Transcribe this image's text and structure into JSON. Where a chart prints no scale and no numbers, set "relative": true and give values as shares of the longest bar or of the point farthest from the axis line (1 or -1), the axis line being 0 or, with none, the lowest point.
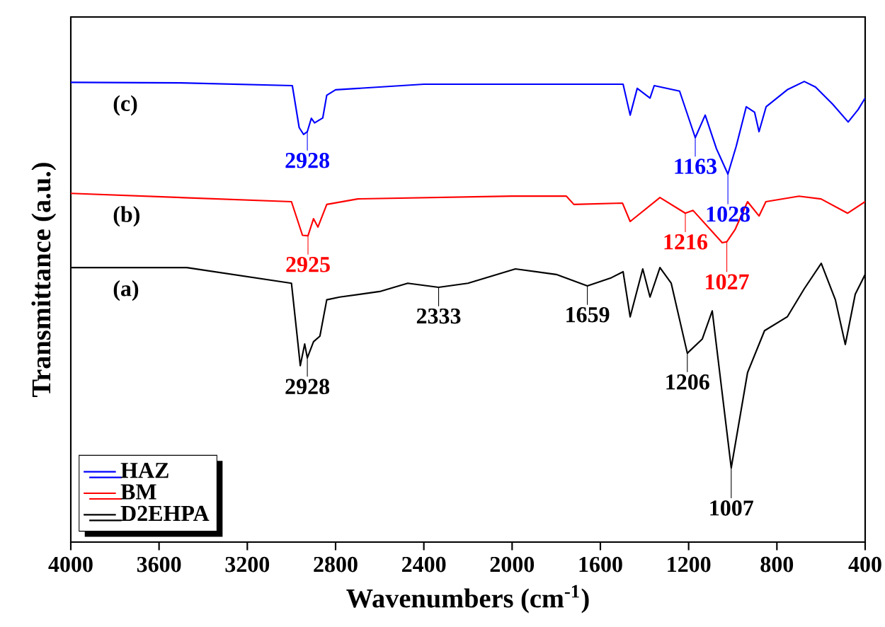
{
  "chart_data": {
    "type": "line",
    "relative": true,
    "xlabel": "Wavenumbers (cm$^{-1}$)",
    "ylabel": "Transmittance (a.u.)",
    "xlim": [
      4000,
      400
    ],
    "xticks": [
      4000,
      3600,
      3200,
      2800,
      2400,
      2000,
      1600,
      1200,
      800,
      400
    ],
    "legend": "bottom left",
    "grid": false,
    "series": [
      {
        "name": "HAZ",
        "color": "#0000ff",
        "x": [
          4000,
          3500,
          2996,
          2965,
          2945,
          2928,
          2910,
          2895,
          2858,
          2840,
          2800,
          2400,
          2000,
          1497,
          1465,
          1433,
          1375,
          1356,
          1241,
          1170,
          1125,
          1074,
          1022,
          984,
          939,
          901,
          881,
          849,
          753,
          676,
          625,
          548,
          477,
          432,
          400
        ],
        "values": [
          0.998,
          0.997,
          0.991,
          0.9,
          0.885,
          0.891,
          0.92,
          0.91,
          0.921,
          0.97,
          0.982,
          0.994,
          0.994,
          0.994,
          0.927,
          0.985,
          0.964,
          0.991,
          0.979,
          0.878,
          0.927,
          0.854,
          0.799,
          0.86,
          0.945,
          0.933,
          0.891,
          0.945,
          0.982,
          1.0,
          0.988,
          0.951,
          0.912,
          0.939,
          0.964
        ]
      },
      {
        "name": "BM",
        "color": "#ff0000",
        "x": [
          4000,
          3000,
          2950,
          2925,
          2900,
          2880,
          2840,
          2700,
          2000,
          1754,
          1720,
          1500,
          1465,
          1330,
          1215,
          1180,
          1048,
          1027,
          990,
          933,
          881,
          850,
          700,
          600,
          480,
          400
        ],
        "values": [
          0.757,
          0.739,
          0.666,
          0.665,
          0.702,
          0.684,
          0.733,
          0.745,
          0.751,
          0.751,
          0.733,
          0.736,
          0.696,
          0.748,
          0.714,
          0.72,
          0.65,
          0.652,
          0.678,
          0.739,
          0.708,
          0.739,
          0.751,
          0.745,
          0.714,
          0.739
        ]
      },
      {
        "name": "D2EHPA",
        "color": "#000000",
        "x": [
          4000,
          3474,
          3000,
          2970,
          2960,
          2940,
          2928,
          2900,
          2871,
          2840,
          2781,
          2600,
          2473,
          2333,
          2200,
          1985,
          1800,
          1659,
          1550,
          1497,
          1465,
          1408,
          1375,
          1330,
          1279,
          1206,
          1138,
          1093,
          1007,
          933,
          856,
          753,
          676,
          599,
          535,
          490,
          445,
          400
        ],
        "values": [
          0.596,
          0.596,
          0.562,
          0.429,
          0.383,
          0.43,
          0.4,
          0.435,
          0.447,
          0.526,
          0.532,
          0.544,
          0.562,
          0.553,
          0.562,
          0.593,
          0.581,
          0.556,
          0.574,
          0.587,
          0.489,
          0.593,
          0.532,
          0.596,
          0.562,
          0.41,
          0.441,
          0.502,
          0.161,
          0.368,
          0.459,
          0.489,
          0.55,
          0.605,
          0.526,
          0.429,
          0.538,
          0.581
        ]
      }
    ],
    "annotations": [
      "(c)",
      "(b)",
      "(a)",
      {
        "text": "2928",
        "x": 2928,
        "y": 0.891
      },
      {
        "text": "1163",
        "x": 1170,
        "y": 0.878
      },
      {
        "text": "1028",
        "x": 1022,
        "y": 0.799
      },
      {
        "text": "2925",
        "x": 2925,
        "y": 0.665
      },
      {
        "text": "1216",
        "x": 1215,
        "y": 0.714
      },
      {
        "text": "1027",
        "x": 1027,
        "y": 0.652
      },
      {
        "text": "2928",
        "x": 2928,
        "y": 0.4
      },
      {
        "text": "2333",
        "x": 2333,
        "y": 0.553
      },
      {
        "text": "1659",
        "x": 1659,
        "y": 0.556
      },
      {
        "text": "1206",
        "x": 1206,
        "y": 0.41
      },
      {
        "text": "1007",
        "x": 1007,
        "y": 0.161
      }
    ]
  }
}
